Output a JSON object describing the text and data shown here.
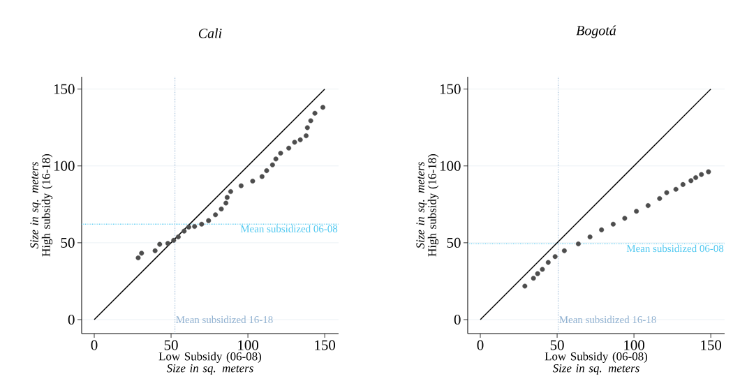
{
  "chart_data": [
    {
      "type": "scatter",
      "title": "Cali",
      "xlabel": "Low Subsidy (06-08) *Size in sq. meters*",
      "ylabel": "*Size in sq. meters* High subsidy (16-18)",
      "xlim": [
        -8.2,
        159
      ],
      "ylim": [
        -9.1,
        158
      ],
      "xticks": [
        0,
        50,
        100,
        150
      ],
      "yticks": [
        0,
        50,
        100,
        150
      ],
      "grid": "y",
      "series": [
        {
          "type": "scatter",
          "color": "#4d4d4d",
          "marker": "circle",
          "x": [
            28.6,
            30.8,
            39.6,
            42.6,
            47.9,
            51.7,
            54.7,
            58.5,
            61.5,
            65.3,
            69.9,
            74.4,
            78.9,
            82.7,
            85.7,
            86.5,
            88.8,
            95.6,
            103.1,
            109.2,
            112.2,
            116.0,
            118.2,
            121.3,
            126.6,
            130.4,
            134.1,
            137.9,
            138.7,
            140.9,
            143.6,
            148.8
          ],
          "values": [
            40.2,
            43.2,
            44.8,
            49.0,
            49.6,
            51.6,
            53.8,
            57.6,
            60.2,
            60.6,
            62.1,
            64.4,
            68.2,
            72.0,
            75.8,
            79.5,
            83.3,
            87.1,
            90.1,
            93.1,
            96.9,
            100.7,
            104.5,
            108.3,
            111.6,
            115.4,
            117.0,
            119.6,
            124.9,
            129.4,
            134.3,
            138.1
          ]
        },
        {
          "type": "line",
          "color": "#000000",
          "marker": "none",
          "line_style": "solid",
          "x": [
            0,
            150
          ],
          "values": [
            0,
            150
          ]
        }
      ],
      "ref_lines": [
        {
          "axis": "x",
          "value": 52.5,
          "label": "Mean subsidized 16-18",
          "color": "#8fb0d0",
          "line_style": "dotted"
        },
        {
          "axis": "y",
          "value": 62.1,
          "label": "Mean subsidized 06-08",
          "color": "#4fc8f0",
          "line_style": "dotted"
        }
      ]
    },
    {
      "type": "scatter",
      "title": "Bogotá",
      "xlabel": "Low Subsidy (06-08) *Size in sq. meters*",
      "ylabel": "*Size in sq. meters* High subsidy (16-18)",
      "xlim": [
        -8.2,
        159
      ],
      "ylim": [
        -9.1,
        158
      ],
      "xticks": [
        0,
        50,
        100,
        150
      ],
      "yticks": [
        0,
        50,
        100,
        150
      ],
      "grid": "y",
      "series": [
        {
          "type": "scatter",
          "color": "#4d4d4d",
          "marker": "circle",
          "x": [
            29.0,
            34.6,
            37.3,
            40.4,
            44.2,
            48.7,
            54.7,
            63.8,
            71.4,
            78.9,
            86.5,
            94.0,
            101.6,
            109.2,
            116.7,
            121.3,
            127.3,
            131.9,
            137.1,
            140.2,
            143.9,
            148.5
          ],
          "values": [
            21.8,
            26.9,
            29.9,
            32.7,
            37.2,
            41.0,
            44.8,
            49.3,
            53.8,
            58.4,
            62.1,
            65.9,
            70.5,
            74.2,
            78.8,
            82.6,
            84.8,
            87.9,
            90.4,
            92.4,
            94.4,
            96.2
          ]
        },
        {
          "type": "line",
          "color": "#000000",
          "marker": "none",
          "line_style": "solid",
          "x": [
            0,
            150
          ],
          "values": [
            0,
            150
          ]
        }
      ],
      "ref_lines": [
        {
          "axis": "x",
          "value": 50.7,
          "label": "Mean subsidized 16-18",
          "color": "#8fb0d0",
          "line_style": "dotted"
        },
        {
          "axis": "y",
          "value": 49.3,
          "label": "Mean subsidized 06-08",
          "color": "#4fc8f0",
          "line_style": "dotted"
        }
      ]
    }
  ]
}
